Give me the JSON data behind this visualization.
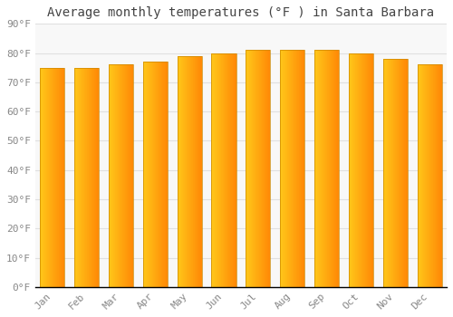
{
  "months": [
    "Jan",
    "Feb",
    "Mar",
    "Apr",
    "May",
    "Jun",
    "Jul",
    "Aug",
    "Sep",
    "Oct",
    "Nov",
    "Dec"
  ],
  "values": [
    75,
    75,
    76,
    77,
    79,
    80,
    81,
    81,
    81,
    80,
    78,
    76
  ],
  "bar_color_left": "#FFD966",
  "bar_color_right": "#FFA500",
  "bar_edge_color": "#CC8800",
  "title": "Average monthly temperatures (°F ) in Santa Barbara",
  "ylim": [
    0,
    90
  ],
  "yticks": [
    0,
    10,
    20,
    30,
    40,
    50,
    60,
    70,
    80,
    90
  ],
  "ytick_labels": [
    "0°F",
    "10°F",
    "20°F",
    "30°F",
    "40°F",
    "50°F",
    "60°F",
    "70°F",
    "80°F",
    "90°F"
  ],
  "background_color": "#ffffff",
  "plot_bg_color": "#f8f8f8",
  "grid_color": "#e0e0e0",
  "title_fontsize": 10,
  "tick_fontsize": 8,
  "bar_width": 0.72
}
